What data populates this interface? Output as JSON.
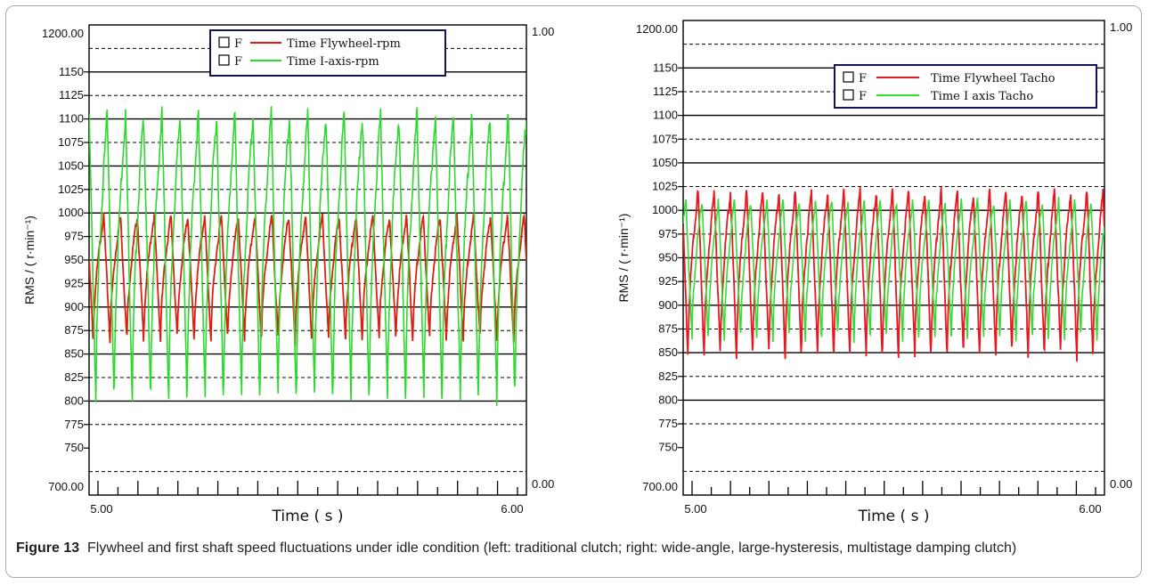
{
  "figure": {
    "label": "Figure 13",
    "caption": "Flywheel and first shaft speed fluctuations under idle condition (left: traditional clutch; right: wide-angle, large-hysteresis, multistage damping clutch)"
  },
  "chart_data": [
    {
      "type": "line",
      "panel": "left",
      "xlabel": "Time ( s )",
      "ylabel": "RMS / ( r·min⁻¹)",
      "xlim": [
        5.0,
        6.0
      ],
      "ylim": [
        700,
        1200
      ],
      "x_tick_labels": [
        "5.00",
        "6.00"
      ],
      "y_tick_labels": [
        "1200.00",
        "1150",
        "1125",
        "1100",
        "1075",
        "1050",
        "1025",
        "1000",
        "975",
        "950",
        "925",
        "900",
        "875",
        "850",
        "825",
        "800",
        "775",
        "750",
        "700.00"
      ],
      "y2_tick_labels": [
        "1.00",
        "0.00"
      ],
      "y2lim": [
        0,
        1
      ],
      "legend_position": "top-center",
      "legend_prefix": "F",
      "series": [
        {
          "name": "Time Flywheel-rpm",
          "color": "#dd1f10",
          "cycles": 26,
          "phase": 0.75,
          "min": 862,
          "max": 997,
          "values": [
            [
              5.0,
              990
            ],
            [
              5.0192,
              862
            ],
            [
              5.0385,
              995
            ],
            [
              5.0577,
              862
            ],
            [
              5.0769,
              995
            ],
            [
              5.0962,
              862
            ],
            [
              5.1154,
              995
            ],
            [
              5.1346,
              862
            ],
            [
              5.1538,
              995
            ],
            [
              5.1731,
              862
            ],
            [
              5.1923,
              995
            ],
            [
              5.2115,
              862
            ],
            [
              5.2308,
              995
            ],
            [
              5.25,
              862
            ],
            [
              5.2692,
              995
            ],
            [
              5.2885,
              862
            ],
            [
              5.3077,
              995
            ],
            [
              5.3269,
              862
            ],
            [
              5.3462,
              995
            ],
            [
              5.3654,
              862
            ],
            [
              5.3846,
              995
            ],
            [
              5.4038,
              862
            ],
            [
              5.4231,
              995
            ],
            [
              5.4423,
              862
            ],
            [
              5.4615,
              995
            ],
            [
              5.4808,
              862
            ],
            [
              5.5,
              995
            ],
            [
              5.5192,
              862
            ],
            [
              5.5385,
              995
            ],
            [
              5.5577,
              862
            ],
            [
              5.5769,
              995
            ],
            [
              5.5962,
              862
            ],
            [
              5.6154,
              995
            ],
            [
              5.6346,
              862
            ],
            [
              5.6538,
              995
            ],
            [
              5.6731,
              862
            ],
            [
              5.6923,
              995
            ],
            [
              5.7115,
              862
            ],
            [
              5.7308,
              995
            ],
            [
              5.75,
              862
            ],
            [
              5.7692,
              995
            ],
            [
              5.7885,
              862
            ],
            [
              5.8077,
              995
            ],
            [
              5.8269,
              862
            ],
            [
              5.8462,
              995
            ],
            [
              5.8654,
              862
            ],
            [
              5.8846,
              995
            ],
            [
              5.9038,
              862
            ],
            [
              5.9231,
              995
            ],
            [
              5.9423,
              862
            ],
            [
              5.9615,
              995
            ],
            [
              5.9808,
              862
            ],
            [
              6.0,
              875
            ]
          ]
        },
        {
          "name": "Time I-axis-rpm",
          "color": "#2bd92b",
          "cycles": 24,
          "phase": 0.62,
          "min": 795,
          "max": 1105,
          "values": [
            [
              5.0,
              905
            ],
            [
              5.0208,
              798
            ],
            [
              5.0417,
              1102
            ],
            [
              5.0625,
              798
            ],
            [
              5.0833,
              1102
            ],
            [
              5.1042,
              798
            ],
            [
              5.125,
              1102
            ],
            [
              5.1458,
              798
            ],
            [
              5.1667,
              1102
            ],
            [
              5.1875,
              798
            ],
            [
              5.2083,
              1102
            ],
            [
              5.2292,
              798
            ],
            [
              5.25,
              1102
            ],
            [
              5.2708,
              798
            ],
            [
              5.2917,
              1102
            ],
            [
              5.3125,
              798
            ],
            [
              5.3333,
              1102
            ],
            [
              5.3542,
              798
            ],
            [
              5.375,
              1102
            ],
            [
              5.3958,
              798
            ],
            [
              5.4167,
              1102
            ],
            [
              5.4375,
              798
            ],
            [
              5.4583,
              1102
            ],
            [
              5.4792,
              798
            ],
            [
              5.5,
              1102
            ],
            [
              5.5208,
              798
            ],
            [
              5.5417,
              1102
            ],
            [
              5.5625,
              798
            ],
            [
              5.5833,
              1102
            ],
            [
              5.6042,
              798
            ],
            [
              5.625,
              1102
            ],
            [
              5.6458,
              798
            ],
            [
              5.6667,
              1102
            ],
            [
              5.6875,
              798
            ],
            [
              5.7083,
              1102
            ],
            [
              5.7292,
              798
            ],
            [
              5.75,
              1102
            ],
            [
              5.7708,
              798
            ],
            [
              5.7917,
              1102
            ],
            [
              5.8125,
              798
            ],
            [
              5.8333,
              1102
            ],
            [
              5.8542,
              798
            ],
            [
              5.875,
              1102
            ],
            [
              5.8958,
              798
            ],
            [
              5.9167,
              1102
            ],
            [
              5.9375,
              798
            ],
            [
              5.9583,
              1102
            ],
            [
              5.9792,
              798
            ],
            [
              6.0,
              1102
            ]
          ]
        }
      ]
    },
    {
      "type": "line",
      "panel": "right",
      "xlabel": "Time ( s )",
      "ylabel": "RMS / ( r·min⁻¹)",
      "xlim": [
        5.0,
        6.0
      ],
      "ylim": [
        700,
        1200
      ],
      "x_tick_labels": [
        "5.00",
        "6.00"
      ],
      "y_tick_labels": [
        "1200.00",
        "1150",
        "1125",
        "1100",
        "1075",
        "1050",
        "1025",
        "1000",
        "975",
        "950",
        "925",
        "900",
        "875",
        "850",
        "825",
        "800",
        "775",
        "750",
        "700.00"
      ],
      "y2_tick_labels": [
        "1.00",
        "0.00"
      ],
      "y2lim": [
        0,
        1
      ],
      "legend_position": "top-right",
      "legend_prefix": "F",
      "series": [
        {
          "name": "Time Flywheel Tacho",
          "color": "#e8181e",
          "cycles": 26,
          "phase": 0.7,
          "min": 843,
          "max": 1020,
          "values": [
            [
              5.0,
              990
            ],
            [
              5.0192,
              843
            ],
            [
              5.0385,
              1020
            ],
            [
              5.0577,
              843
            ],
            [
              5.0769,
              1020
            ],
            [
              5.0962,
              843
            ],
            [
              5.1154,
              1020
            ],
            [
              5.1346,
              843
            ],
            [
              5.1538,
              1020
            ],
            [
              5.1731,
              843
            ],
            [
              5.1923,
              1020
            ],
            [
              5.2115,
              843
            ],
            [
              5.2308,
              1020
            ],
            [
              5.25,
              843
            ],
            [
              5.2692,
              1020
            ],
            [
              5.2885,
              843
            ],
            [
              5.3077,
              1020
            ],
            [
              5.3269,
              843
            ],
            [
              5.3462,
              1020
            ],
            [
              5.3654,
              843
            ],
            [
              5.3846,
              1020
            ],
            [
              5.4038,
              843
            ],
            [
              5.4231,
              1020
            ],
            [
              5.4423,
              843
            ],
            [
              5.4615,
              1020
            ],
            [
              5.4808,
              843
            ],
            [
              5.5,
              1020
            ],
            [
              5.5192,
              843
            ],
            [
              5.5385,
              1020
            ],
            [
              5.5577,
              843
            ],
            [
              5.5769,
              1020
            ],
            [
              5.5962,
              843
            ],
            [
              5.6154,
              1020
            ],
            [
              5.6346,
              843
            ],
            [
              5.6538,
              1020
            ],
            [
              5.6731,
              843
            ],
            [
              5.6923,
              1020
            ],
            [
              5.7115,
              843
            ],
            [
              5.7308,
              1020
            ],
            [
              5.75,
              843
            ],
            [
              5.7692,
              1020
            ],
            [
              5.7885,
              843
            ],
            [
              5.8077,
              1020
            ],
            [
              5.8269,
              843
            ],
            [
              5.8462,
              1020
            ],
            [
              5.8654,
              843
            ],
            [
              5.8846,
              1020
            ],
            [
              5.9038,
              843
            ],
            [
              5.9231,
              1020
            ],
            [
              5.9423,
              843
            ],
            [
              5.9615,
              1020
            ],
            [
              5.9808,
              843
            ],
            [
              6.0,
              975
            ]
          ]
        },
        {
          "name": "Time I axis Tacho",
          "color": "#33dd33",
          "cycles": 26,
          "phase": 0.45,
          "min": 862,
          "max": 1010,
          "values": [
            [
              5.0,
              970
            ],
            [
              5.0192,
              862
            ],
            [
              5.0385,
              1010
            ],
            [
              5.0577,
              862
            ],
            [
              5.0769,
              1010
            ],
            [
              5.0962,
              862
            ],
            [
              5.1154,
              1010
            ],
            [
              5.1346,
              862
            ],
            [
              5.1538,
              1010
            ],
            [
              5.1731,
              862
            ],
            [
              5.1923,
              1010
            ],
            [
              5.2115,
              862
            ],
            [
              5.2308,
              1010
            ],
            [
              5.25,
              862
            ],
            [
              5.2692,
              1010
            ],
            [
              5.2885,
              862
            ],
            [
              5.3077,
              1010
            ],
            [
              5.3269,
              862
            ],
            [
              5.3462,
              1010
            ],
            [
              5.3654,
              862
            ],
            [
              5.3846,
              1010
            ],
            [
              5.4038,
              862
            ],
            [
              5.4231,
              1010
            ],
            [
              5.4423,
              862
            ],
            [
              5.4615,
              1010
            ],
            [
              5.4808,
              862
            ],
            [
              5.5,
              1010
            ],
            [
              5.5192,
              862
            ],
            [
              5.5385,
              1010
            ],
            [
              5.5577,
              862
            ],
            [
              5.5769,
              1010
            ],
            [
              5.5962,
              862
            ],
            [
              5.6154,
              1010
            ],
            [
              5.6346,
              862
            ],
            [
              5.6538,
              1010
            ],
            [
              5.6731,
              862
            ],
            [
              5.6923,
              1010
            ],
            [
              5.7115,
              862
            ],
            [
              5.7308,
              1010
            ],
            [
              5.75,
              862
            ],
            [
              5.7692,
              1010
            ],
            [
              5.7885,
              862
            ],
            [
              5.8077,
              1010
            ],
            [
              5.8269,
              862
            ],
            [
              5.8462,
              1010
            ],
            [
              5.8654,
              862
            ],
            [
              5.8846,
              1010
            ],
            [
              5.9038,
              862
            ],
            [
              5.9231,
              1010
            ],
            [
              5.9423,
              862
            ],
            [
              5.9615,
              1010
            ],
            [
              5.9808,
              862
            ],
            [
              6.0,
              1000
            ]
          ]
        }
      ]
    }
  ]
}
